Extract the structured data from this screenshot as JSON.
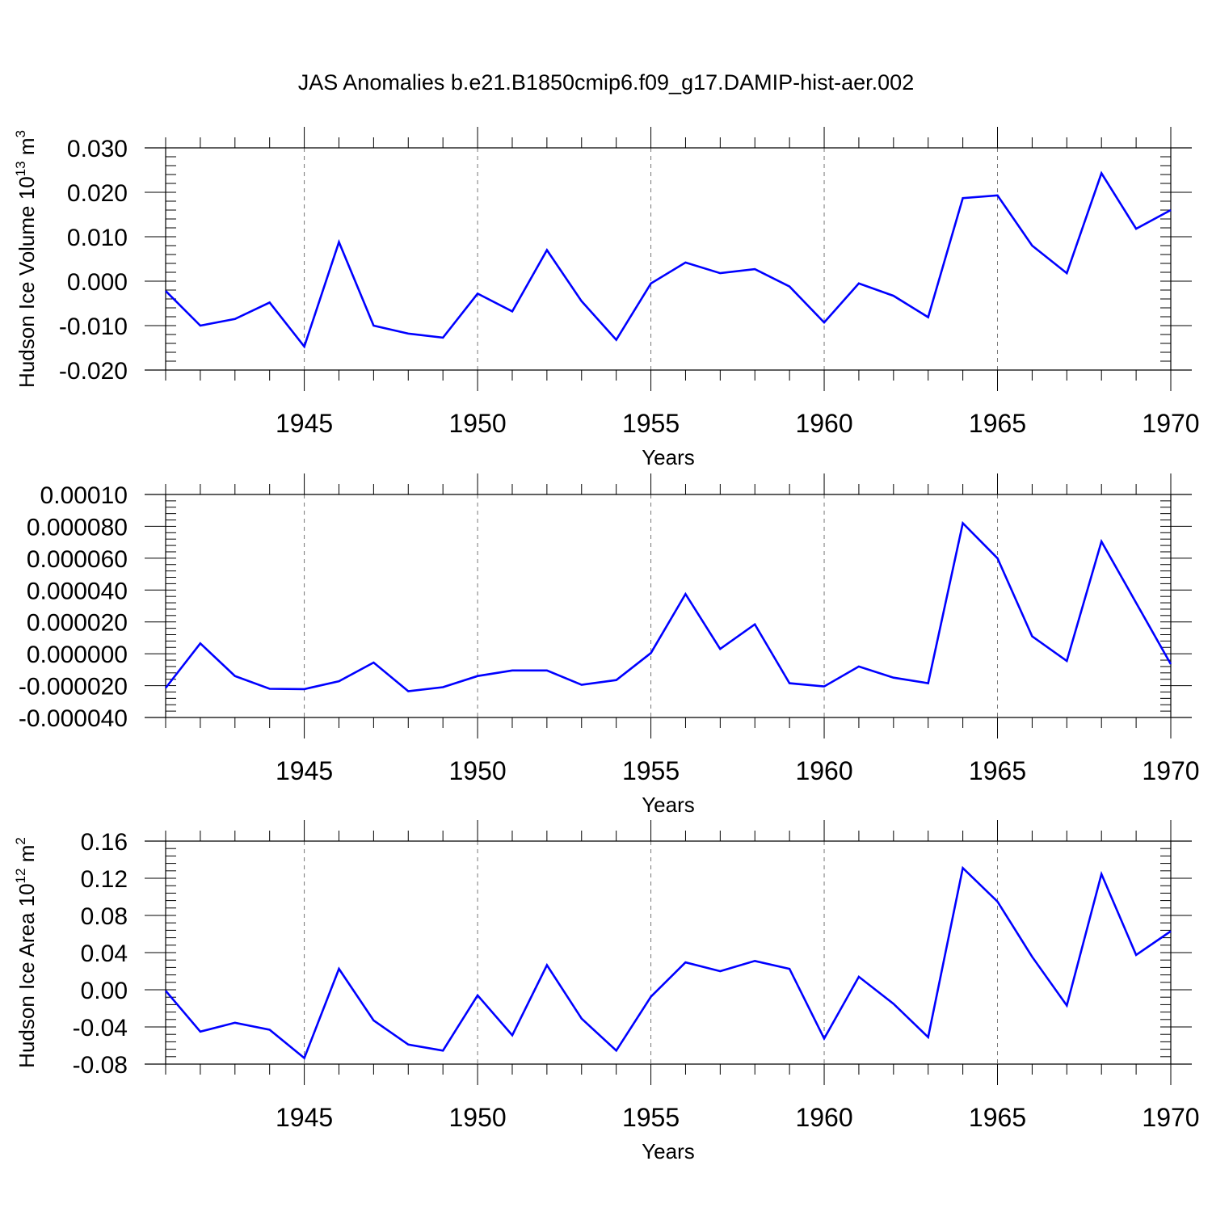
{
  "title": "JAS Anomalies b.e21.B1850cmip6.f09_g17.DAMIP-hist-aer.002",
  "colors": {
    "line": "#0000ff",
    "axis": "#000000",
    "grid": "#777777"
  },
  "chart_data": [
    {
      "type": "line",
      "ylabel_main": "Hudson Ice Volume 10",
      "ylabel_exp": "13",
      "ylabel_unit": " m",
      "ylabel_unit_exp": "3",
      "xlabel": "Years",
      "xlim": [
        1941,
        1970
      ],
      "ylim": [
        -0.02,
        0.03
      ],
      "xticks": [
        1945,
        1950,
        1955,
        1960,
        1965,
        1970
      ],
      "yticks": [
        -0.02,
        -0.01,
        0.0,
        0.01,
        0.02,
        0.03
      ],
      "ytick_labels": [
        "-0.020",
        "-0.010",
        "0.000",
        "0.010",
        "0.020",
        "0.030"
      ],
      "y_minor_step": 0.002,
      "grid": "vertical dashed at major x ticks",
      "x": [
        1941,
        1942,
        1943,
        1944,
        1945,
        1946,
        1947,
        1948,
        1949,
        1950,
        1951,
        1952,
        1953,
        1954,
        1955,
        1956,
        1957,
        1958,
        1959,
        1960,
        1961,
        1962,
        1963,
        1964,
        1965,
        1966,
        1967,
        1968,
        1969,
        1970
      ],
      "values": [
        -0.0022,
        -0.01,
        -0.0085,
        -0.0048,
        -0.0147,
        0.0088,
        -0.01,
        -0.0118,
        -0.0127,
        -0.0028,
        -0.0068,
        0.007,
        -0.0045,
        -0.0132,
        -0.0005,
        0.0042,
        0.0018,
        0.0027,
        -0.0012,
        -0.0093,
        -0.0005,
        -0.0033,
        -0.0081,
        0.0187,
        0.0193,
        0.008,
        0.0018,
        0.0243,
        0.0118,
        0.016
      ]
    },
    {
      "type": "line",
      "ylabel_main": "",
      "ylabel_exp": "",
      "ylabel_unit": "",
      "ylabel_unit_exp": "",
      "xlabel": "Years",
      "xlim": [
        1941,
        1970
      ],
      "ylim": [
        -4e-05,
        0.0001
      ],
      "xticks": [
        1945,
        1950,
        1955,
        1960,
        1965,
        1970
      ],
      "yticks": [
        -4e-05,
        -2e-05,
        0.0,
        2e-05,
        4e-05,
        6e-05,
        8e-05,
        0.0001
      ],
      "ytick_labels": [
        "-0.000040",
        "-0.000020",
        "0.000000",
        "0.000020",
        "0.000040",
        "0.000060",
        "0.000080",
        "0.00010"
      ],
      "y_minor_step": 4e-06,
      "grid": "vertical dashed at major x ticks",
      "x": [
        1941,
        1942,
        1943,
        1944,
        1945,
        1946,
        1947,
        1948,
        1949,
        1950,
        1951,
        1952,
        1953,
        1954,
        1955,
        1956,
        1957,
        1958,
        1959,
        1960,
        1961,
        1962,
        1963,
        1964,
        1965,
        1966,
        1967,
        1968,
        1969,
        1970
      ],
      "values": [
        -2.15e-05,
        6.5e-06,
        -1.4e-05,
        -2.2e-05,
        -2.22e-05,
        -1.72e-05,
        -5.5e-06,
        -2.35e-05,
        -2.1e-05,
        -1.4e-05,
        -1.05e-05,
        -1.05e-05,
        -1.95e-05,
        -1.65e-05,
        5e-07,
        3.75e-05,
        3e-06,
        1.85e-05,
        -1.85e-05,
        -2.05e-05,
        -8e-06,
        -1.5e-05,
        -1.85e-05,
        8.2e-05,
        6e-05,
        1.1e-05,
        -4.5e-06,
        7.05e-05,
        3.2e-05,
        -6.5e-06
      ]
    },
    {
      "type": "line",
      "ylabel_main": "Hudson Ice Area 10",
      "ylabel_exp": "12",
      "ylabel_unit": " m",
      "ylabel_unit_exp": "2",
      "xlabel": "Years",
      "xlim": [
        1941,
        1970
      ],
      "ylim": [
        -0.08,
        0.16
      ],
      "xticks": [
        1945,
        1950,
        1955,
        1960,
        1965,
        1970
      ],
      "yticks": [
        -0.08,
        -0.04,
        0.0,
        0.04,
        0.08,
        0.12,
        0.16
      ],
      "ytick_labels": [
        "-0.08",
        "-0.04",
        "0.00",
        "0.04",
        "0.08",
        "0.12",
        "0.16"
      ],
      "y_minor_step": 0.008,
      "grid": "vertical dashed at major x ticks",
      "x": [
        1941,
        1942,
        1943,
        1944,
        1945,
        1946,
        1947,
        1948,
        1949,
        1950,
        1951,
        1952,
        1953,
        1954,
        1955,
        1956,
        1957,
        1958,
        1959,
        1960,
        1961,
        1962,
        1963,
        1964,
        1965,
        1966,
        1967,
        1968,
        1969,
        1970
      ],
      "values": [
        -0.001,
        -0.045,
        -0.0355,
        -0.043,
        -0.0735,
        0.0225,
        -0.033,
        -0.059,
        -0.0655,
        -0.006,
        -0.049,
        0.0265,
        -0.031,
        -0.0655,
        -0.0075,
        0.0295,
        0.02,
        0.031,
        0.0225,
        -0.0525,
        0.014,
        -0.015,
        -0.051,
        0.131,
        0.095,
        0.0355,
        -0.017,
        0.1245,
        0.0375,
        0.063
      ]
    }
  ]
}
